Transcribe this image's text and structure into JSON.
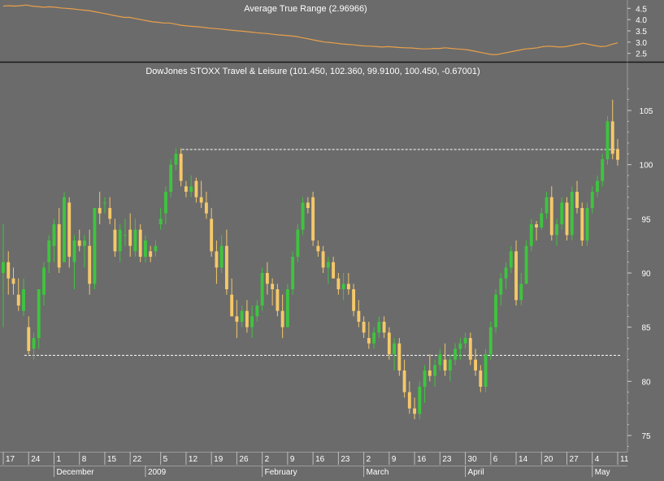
{
  "colors": {
    "background": "#6b6b6b",
    "bull": "#3ec43e",
    "bear": "#f5c869",
    "atr_line": "#e8a04a",
    "axis_text": "#ffffff",
    "divider": "#1a1a1a",
    "dashed": "#ffffff"
  },
  "chart_data": [
    {
      "type": "line",
      "title": "Average True Range (2.96966)",
      "ylim": [
        2.2,
        4.8
      ],
      "yticks": [
        "4.5",
        "4.0",
        "3.5",
        "3.0",
        "2.5"
      ],
      "ytick_values": [
        4.5,
        4.0,
        3.5,
        3.0,
        2.5
      ],
      "series": [
        {
          "values": [
            4.6,
            4.62,
            4.6,
            4.62,
            4.65,
            4.6,
            4.58,
            4.55,
            4.57,
            4.55,
            4.52,
            4.5,
            4.48,
            4.45,
            4.42,
            4.4,
            4.35,
            4.3,
            4.25,
            4.2,
            4.15,
            4.1,
            4.1,
            4.05,
            4.0,
            3.95,
            3.9,
            3.88,
            3.85,
            3.85,
            3.8,
            3.75,
            3.72,
            3.7,
            3.68,
            3.65,
            3.62,
            3.6,
            3.58,
            3.55,
            3.52,
            3.5,
            3.48,
            3.45,
            3.42,
            3.4,
            3.38,
            3.35,
            3.32,
            3.3,
            3.28,
            3.25,
            3.2,
            3.15,
            3.1,
            3.05,
            3.0,
            2.98,
            2.95,
            2.92,
            2.9,
            2.88,
            2.85,
            2.83,
            2.82,
            2.8,
            2.78,
            2.8,
            2.78,
            2.76,
            2.75,
            2.74,
            2.72,
            2.7,
            2.7,
            2.72,
            2.72,
            2.75,
            2.72,
            2.7,
            2.68,
            2.65,
            2.6,
            2.55,
            2.5,
            2.45,
            2.45,
            2.5,
            2.55,
            2.6,
            2.65,
            2.7,
            2.72,
            2.75,
            2.8,
            2.82,
            2.8,
            2.78,
            2.8,
            2.85,
            2.9,
            2.95,
            2.9,
            2.85,
            2.8,
            2.82,
            2.9,
            2.97
          ]
        }
      ]
    },
    {
      "type": "candlestick",
      "title": "DowJones STOXX Travel & Leisure (101.450, 102.360, 99.9100, 100.450, -0.67001)",
      "ylim": [
        73.5,
        108
      ],
      "yticks": [
        "105",
        "100",
        "95",
        "90",
        "85",
        "80",
        "75"
      ],
      "ytick_values": [
        105,
        100,
        95,
        90,
        85,
        80,
        75
      ],
      "xticks": [
        "17",
        "24",
        "1",
        "8",
        "15",
        "22",
        "5",
        "12",
        "19",
        "26",
        "2",
        "9",
        "16",
        "23",
        "2",
        "9",
        "16",
        "23",
        "30",
        "6",
        "14",
        "20",
        "27",
        "4",
        "11"
      ],
      "xtick_bars": [
        0,
        5,
        10,
        15,
        20,
        25,
        31,
        36,
        41,
        46,
        51,
        56,
        61,
        66,
        71,
        76,
        81,
        86,
        91,
        96,
        101,
        106,
        111,
        116,
        121
      ],
      "months": [
        "December",
        "2009",
        "February",
        "March",
        "April",
        "May"
      ],
      "month_bars": [
        10,
        28,
        51,
        71,
        91,
        116
      ],
      "hlines": [
        101.4,
        82.4
      ],
      "hline_start_bar": [
        31,
        0
      ],
      "bars": [
        [
          90.0,
          94.5,
          85.0,
          91.0
        ],
        [
          91.0,
          92.0,
          88.0,
          89.5
        ],
        [
          89.5,
          90.5,
          88.0,
          89.0
        ],
        [
          88.0,
          89.5,
          86.5,
          87.0
        ],
        [
          86.5,
          89.5,
          86.0,
          88.5
        ],
        [
          85.0,
          86.0,
          82.5,
          82.8
        ],
        [
          83.0,
          84.5,
          82.0,
          84.0
        ],
        [
          84.0,
          88.5,
          83.0,
          88.5
        ],
        [
          88.0,
          91.0,
          87.0,
          90.5
        ],
        [
          91.0,
          93.5,
          90.0,
          93.0
        ],
        [
          92.5,
          95.0,
          91.0,
          94.5
        ],
        [
          94.5,
          96.0,
          90.0,
          90.5
        ],
        [
          91.0,
          97.5,
          91.0,
          97.0
        ],
        [
          96.5,
          97.0,
          90.5,
          91.5
        ],
        [
          91.0,
          93.5,
          88.5,
          93.0
        ],
        [
          93.0,
          94.0,
          92.0,
          92.5
        ],
        [
          92.5,
          93.5,
          90.5,
          93.0
        ],
        [
          92.5,
          94.0,
          88.0,
          89.0
        ],
        [
          89.0,
          96.0,
          88.5,
          96.0
        ],
        [
          96.0,
          97.5,
          94.5,
          95.5
        ],
        [
          96.5,
          97.0,
          95.5,
          96.5
        ],
        [
          96.0,
          97.0,
          94.5,
          95.0
        ],
        [
          94.0,
          95.0,
          91.5,
          92.0
        ],
        [
          92.0,
          94.5,
          91.0,
          94.0
        ],
        [
          93.5,
          95.0,
          92.5,
          93.5
        ],
        [
          94.0,
          95.5,
          91.5,
          92.5
        ],
        [
          92.0,
          95.0,
          91.5,
          94.0
        ],
        [
          94.0,
          94.5,
          91.0,
          91.5
        ],
        [
          91.5,
          93.5,
          91.0,
          93.0
        ],
        [
          92.0,
          92.5,
          91.0,
          91.5
        ],
        [
          92.0,
          93.0,
          91.5,
          92.5
        ],
        [
          94.5,
          96.0,
          94.0,
          95.0
        ],
        [
          95.5,
          98.0,
          94.5,
          97.5
        ],
        [
          97.5,
          100.5,
          97.0,
          100.0
        ],
        [
          100.0,
          101.5,
          99.5,
          101.0
        ],
        [
          101.0,
          101.5,
          98.0,
          98.5
        ],
        [
          98.0,
          98.5,
          97.0,
          97.5
        ],
        [
          97.5,
          99.0,
          97.0,
          98.0
        ],
        [
          98.5,
          98.8,
          96.5,
          97.0
        ],
        [
          97.0,
          98.5,
          96.0,
          96.5
        ],
        [
          96.5,
          97.5,
          95.0,
          95.5
        ],
        [
          95.0,
          96.0,
          91.5,
          92.0
        ],
        [
          92.0,
          93.0,
          89.0,
          90.5
        ],
        [
          90.5,
          93.5,
          90.0,
          92.5
        ],
        [
          92.5,
          94.0,
          88.0,
          88.5
        ],
        [
          88.0,
          89.5,
          86.0,
          86.0
        ],
        [
          86.0,
          87.5,
          84.0,
          85.5
        ],
        [
          85.5,
          87.0,
          85.0,
          86.5
        ],
        [
          86.5,
          87.5,
          84.5,
          85.0
        ],
        [
          85.0,
          87.0,
          84.0,
          86.0
        ],
        [
          86.0,
          87.5,
          85.5,
          87.0
        ],
        [
          87.0,
          90.5,
          86.5,
          90.0
        ],
        [
          90.0,
          91.0,
          88.0,
          89.0
        ],
        [
          89.0,
          89.5,
          87.0,
          88.5
        ],
        [
          88.5,
          89.0,
          86.0,
          86.5
        ],
        [
          86.5,
          88.0,
          84.0,
          85.0
        ],
        [
          85.0,
          89.0,
          85.0,
          88.5
        ],
        [
          88.5,
          92.0,
          88.0,
          91.5
        ],
        [
          91.5,
          94.5,
          91.0,
          94.0
        ],
        [
          94.0,
          97.0,
          93.5,
          96.5
        ],
        [
          96.5,
          97.0,
          95.5,
          96.0
        ],
        [
          97.0,
          97.5,
          92.5,
          93.0
        ],
        [
          92.5,
          93.0,
          91.5,
          92.0
        ],
        [
          92.0,
          92.5,
          90.0,
          90.5
        ],
        [
          90.5,
          91.5,
          89.0,
          91.0
        ],
        [
          91.0,
          91.5,
          89.5,
          89.5
        ],
        [
          89.5,
          90.0,
          88.0,
          88.5
        ],
        [
          88.5,
          90.0,
          87.5,
          89.0
        ],
        [
          89.0,
          90.0,
          88.0,
          88.5
        ],
        [
          88.5,
          89.0,
          86.0,
          86.5
        ],
        [
          86.5,
          87.5,
          85.0,
          85.5
        ],
        [
          85.5,
          86.0,
          84.0,
          84.5
        ],
        [
          84.0,
          85.5,
          83.0,
          83.5
        ],
        [
          83.5,
          85.0,
          83.0,
          84.5
        ],
        [
          84.5,
          86.0,
          84.0,
          85.5
        ],
        [
          85.5,
          86.0,
          84.0,
          84.5
        ],
        [
          84.5,
          85.0,
          82.0,
          82.5
        ],
        [
          82.5,
          84.0,
          81.0,
          83.5
        ],
        [
          83.5,
          84.0,
          80.5,
          81.0
        ],
        [
          81.0,
          82.0,
          78.5,
          79.0
        ],
        [
          79.0,
          80.0,
          77.0,
          77.5
        ],
        [
          77.5,
          78.5,
          76.5,
          77.0
        ],
        [
          77.0,
          80.0,
          76.5,
          79.5
        ],
        [
          79.5,
          81.5,
          78.0,
          81.0
        ],
        [
          81.0,
          82.5,
          80.0,
          80.5
        ],
        [
          80.5,
          82.0,
          79.5,
          81.5
        ],
        [
          81.5,
          83.0,
          81.0,
          82.5
        ],
        [
          82.0,
          83.5,
          80.5,
          81.0
        ],
        [
          81.0,
          82.5,
          80.0,
          82.0
        ],
        [
          82.0,
          83.5,
          81.5,
          83.0
        ],
        [
          83.0,
          84.0,
          82.0,
          83.5
        ],
        [
          83.5,
          84.5,
          83.0,
          84.0
        ],
        [
          84.0,
          84.5,
          81.5,
          82.0
        ],
        [
          82.0,
          83.0,
          80.5,
          81.0
        ],
        [
          81.0,
          81.5,
          79.0,
          79.5
        ],
        [
          79.5,
          83.0,
          79.0,
          82.5
        ],
        [
          82.5,
          85.5,
          82.0,
          85.0
        ],
        [
          85.0,
          88.5,
          84.5,
          88.0
        ],
        [
          88.0,
          90.0,
          87.0,
          89.5
        ],
        [
          89.5,
          91.0,
          88.5,
          90.5
        ],
        [
          90.5,
          92.5,
          90.0,
          92.0
        ],
        [
          92.0,
          93.0,
          87.0,
          87.5
        ],
        [
          87.5,
          90.0,
          87.0,
          89.0
        ],
        [
          89.0,
          93.0,
          89.0,
          92.5
        ],
        [
          92.5,
          95.0,
          92.0,
          94.5
        ],
        [
          94.5,
          94.8,
          93.0,
          94.2
        ],
        [
          94.2,
          96.0,
          94.0,
          95.5
        ],
        [
          95.5,
          97.5,
          95.0,
          97.0
        ],
        [
          97.0,
          98.0,
          93.0,
          93.5
        ],
        [
          93.5,
          95.0,
          92.5,
          94.5
        ],
        [
          94.5,
          97.0,
          94.0,
          96.5
        ],
        [
          96.5,
          97.0,
          93.0,
          93.5
        ],
        [
          93.5,
          98.0,
          93.0,
          97.5
        ],
        [
          97.5,
          98.5,
          95.5,
          96.0
        ],
        [
          96.0,
          96.5,
          92.5,
          93.0
        ],
        [
          93.0,
          96.5,
          92.5,
          96.0
        ],
        [
          96.0,
          98.0,
          95.5,
          97.5
        ],
        [
          97.5,
          99.0,
          97.0,
          98.5
        ],
        [
          98.5,
          101.0,
          98.0,
          100.5
        ],
        [
          100.5,
          104.5,
          100.0,
          104.0
        ],
        [
          104.0,
          106.0,
          100.5,
          101.0
        ],
        [
          101.45,
          102.36,
          99.91,
          100.45
        ]
      ]
    }
  ]
}
